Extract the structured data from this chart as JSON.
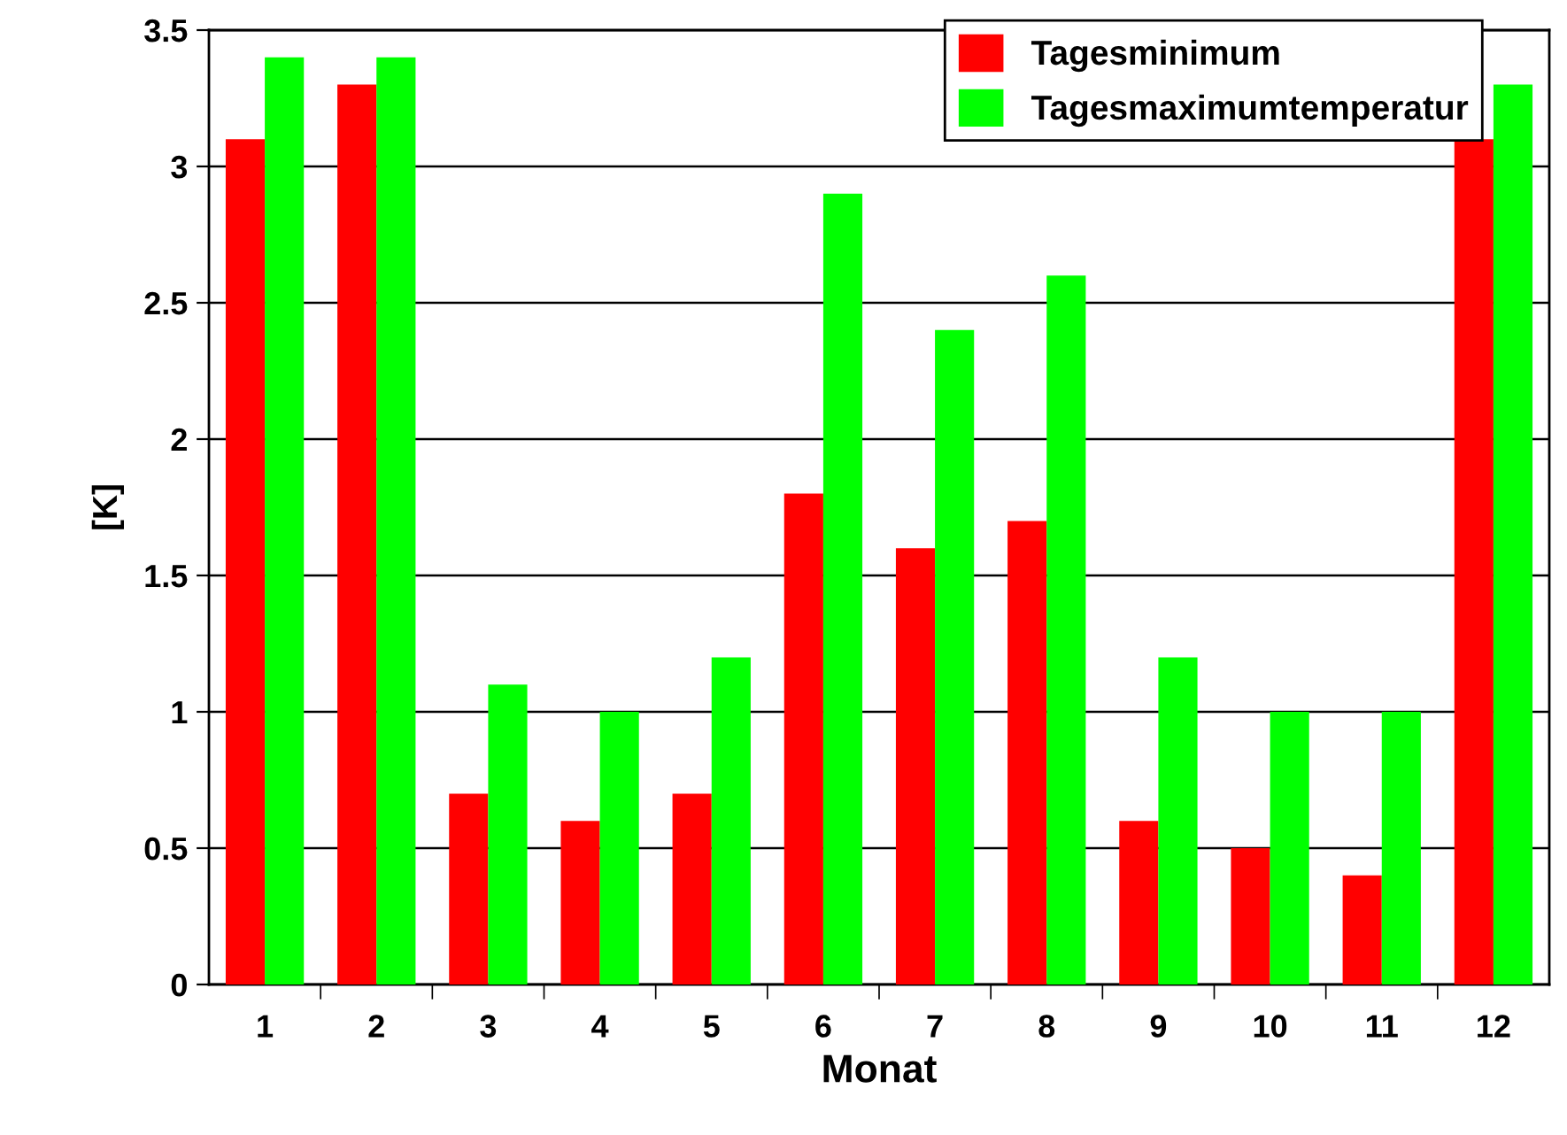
{
  "chart_data": {
    "type": "bar",
    "xlabel": "Monat",
    "ylabel": "[K]",
    "categories": [
      "1",
      "2",
      "3",
      "4",
      "5",
      "6",
      "7",
      "8",
      "9",
      "10",
      "11",
      "12"
    ],
    "series": [
      {
        "name": "Tagesminimum",
        "color": "#ff0000",
        "values": [
          3.1,
          3.3,
          0.7,
          0.6,
          0.7,
          1.8,
          1.6,
          1.7,
          0.6,
          0.5,
          0.4,
          3.1
        ]
      },
      {
        "name": "Tagesmaximumtemperatur",
        "color": "#00ff00",
        "values": [
          3.4,
          3.4,
          1.1,
          1.0,
          1.2,
          2.9,
          2.4,
          2.6,
          1.2,
          1.0,
          1.0,
          3.3
        ]
      }
    ],
    "ylim": [
      0,
      3.5
    ],
    "yticks": [
      0,
      {
        "value": 0.5,
        "label": "0.5"
      },
      1,
      {
        "value": 1.5,
        "label": "1.5"
      },
      2,
      {
        "value": 2.5,
        "label": "2.5"
      },
      3,
      {
        "value": 3.5,
        "label": "3.5"
      }
    ],
    "grid": "y",
    "legend": "top right"
  }
}
